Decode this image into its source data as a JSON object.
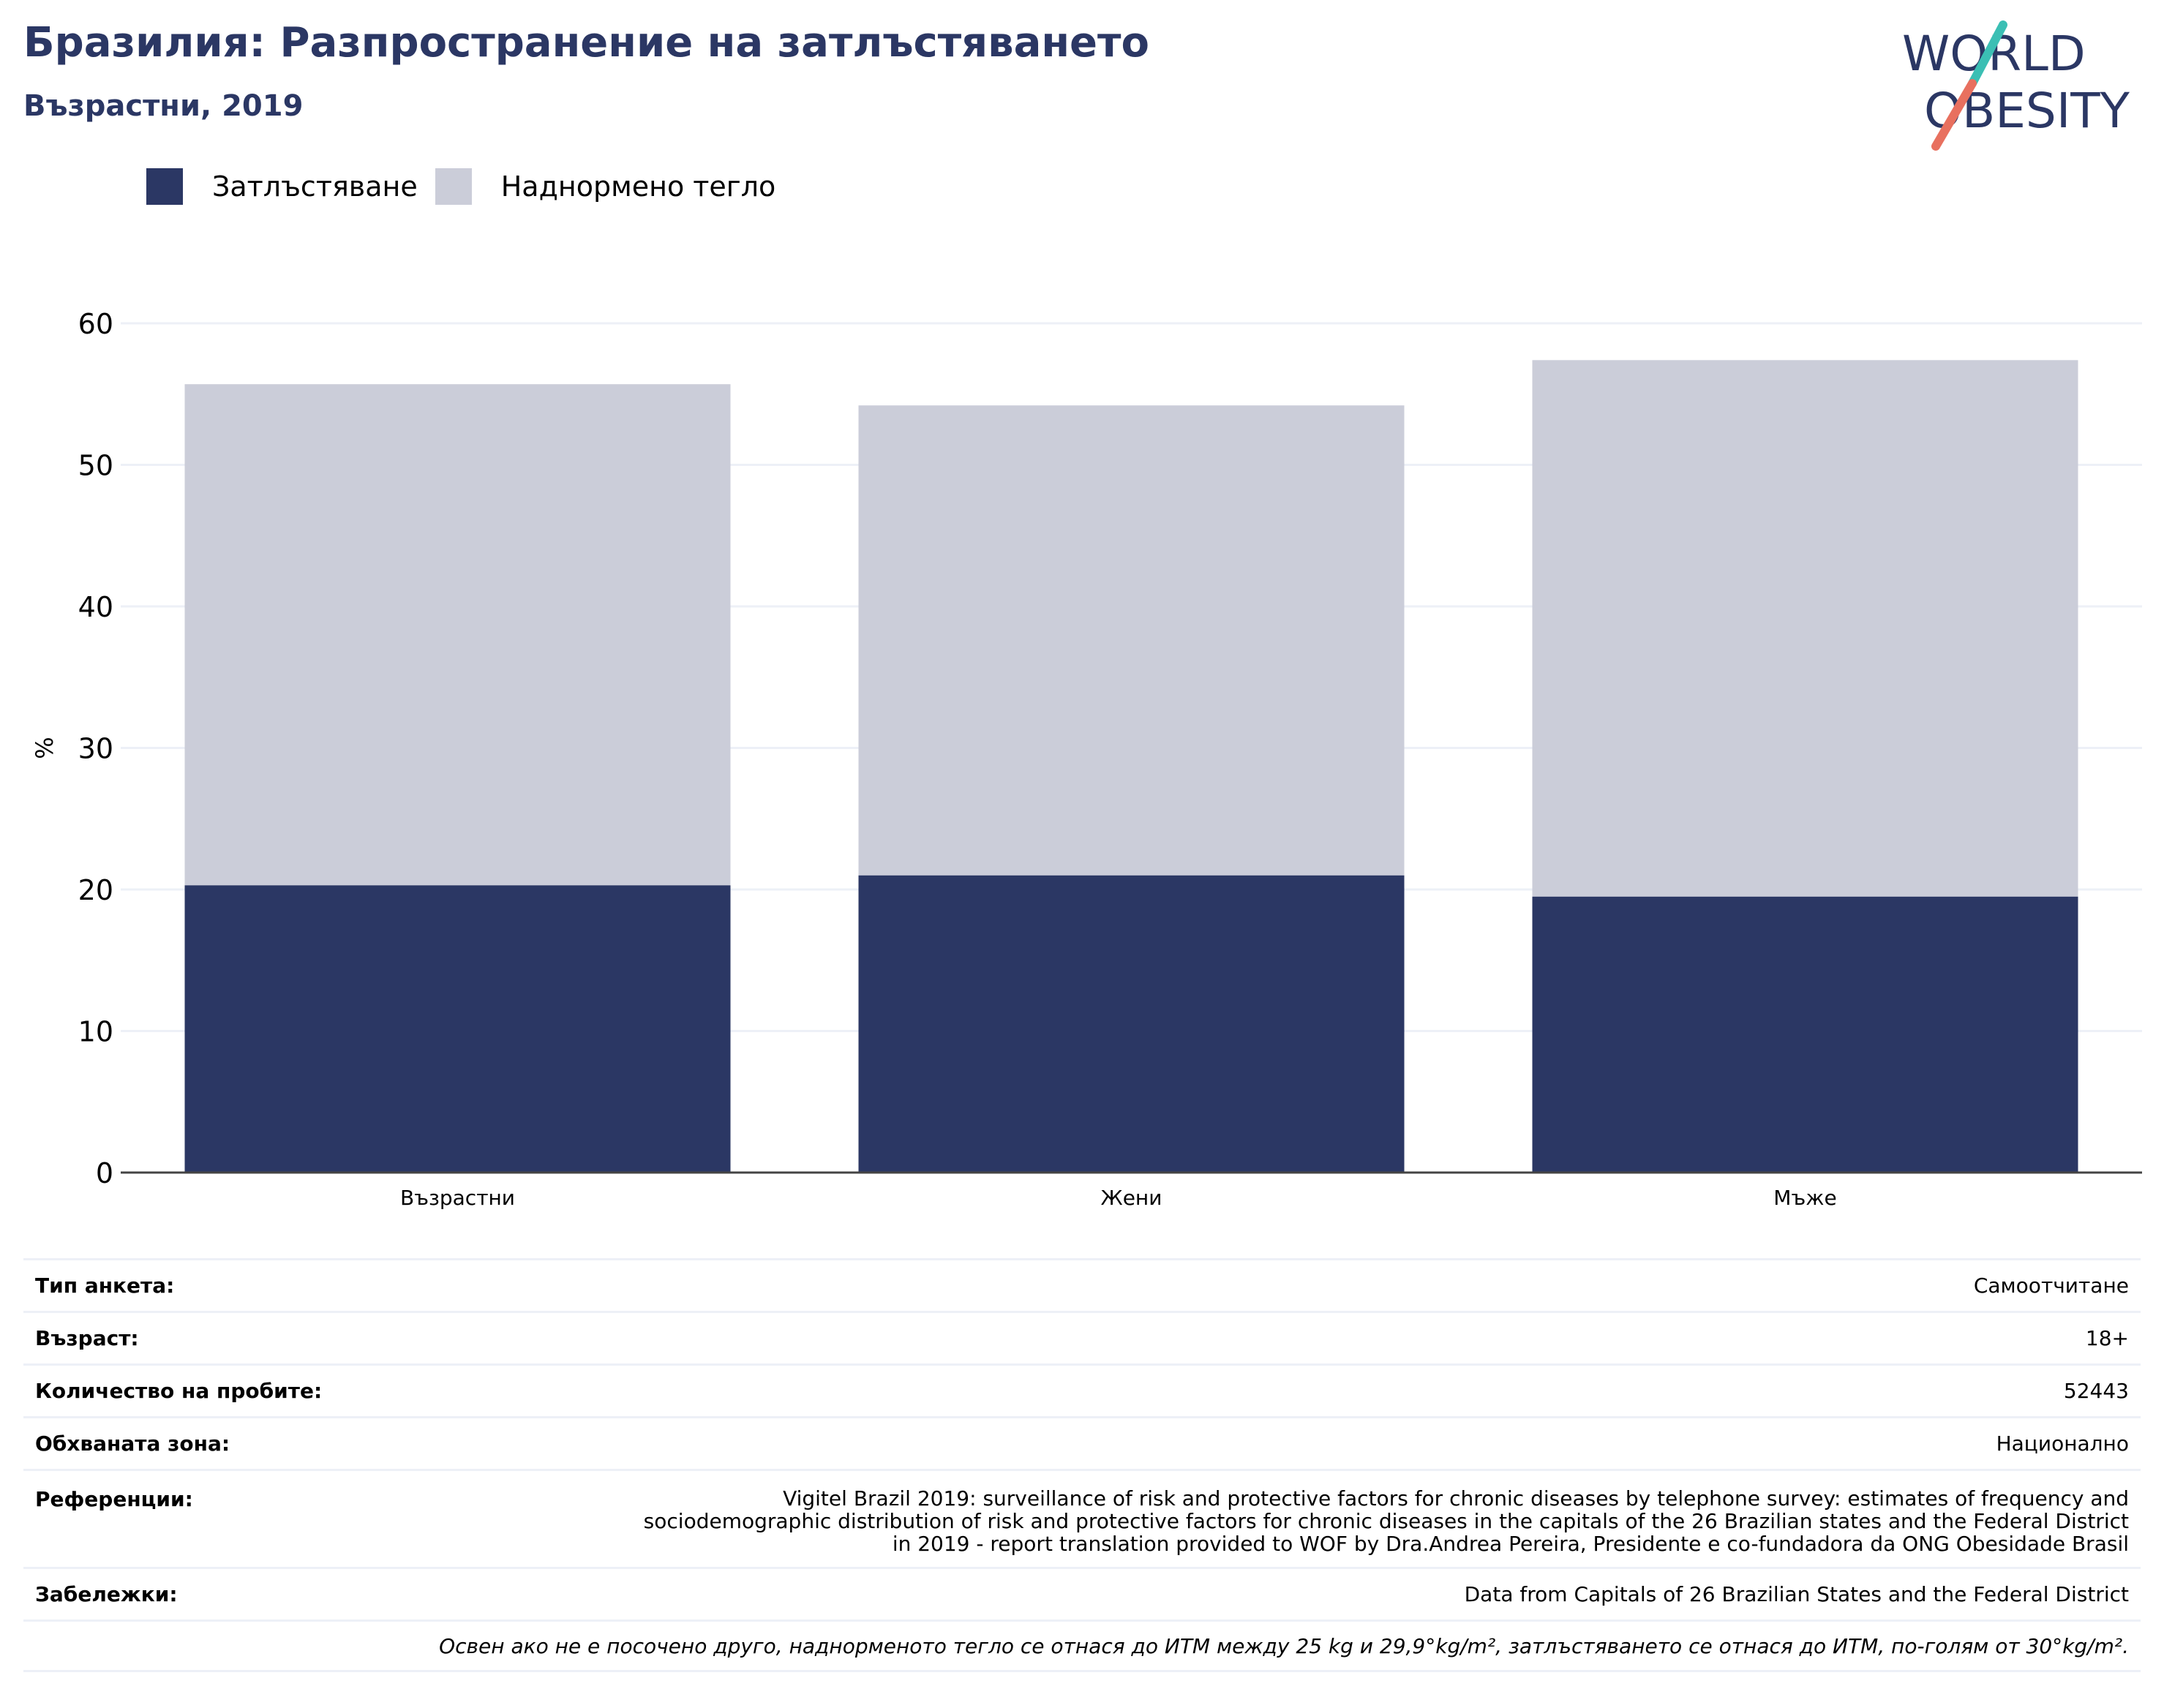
{
  "header": {
    "title": "Бразилия: Разпространение на затлъстяването",
    "subtitle": "Възрастни, 2019",
    "logo_line1": "WORLD",
    "logo_line2": "OBESITY"
  },
  "colors": {
    "obesity": "#2b3764",
    "overweight": "#cbcdd9",
    "grid": "#edf0f7",
    "logo_text": "#2b3764",
    "logo_slash_top": "#3bbfb4",
    "logo_slash_bottom": "#e8705f"
  },
  "chart_data": {
    "type": "bar",
    "stacked": true,
    "title": "",
    "xlabel": "",
    "ylabel": "%",
    "ylim": [
      0,
      60
    ],
    "yticks": [
      0,
      10,
      20,
      30,
      40,
      50,
      60
    ],
    "grid": true,
    "legend_position": "top-left",
    "categories": [
      "Възрастни",
      "Жени",
      "Мъже"
    ],
    "series": [
      {
        "name": "Затлъстяване",
        "values": [
          20.3,
          21.0,
          19.5
        ]
      },
      {
        "name": "Наднормено тегло",
        "values": [
          35.4,
          33.2,
          37.9
        ]
      }
    ]
  },
  "info_table": {
    "rows": [
      {
        "label": "Тип анкета:",
        "value": "Самоотчитане"
      },
      {
        "label": "Възраст:",
        "value": "18+"
      },
      {
        "label": "Количество на пробите:",
        "value": "52443"
      },
      {
        "label": "Обхваната зона:",
        "value": "Национално"
      },
      {
        "label": "Референции:",
        "value": "Vigitel Brazil 2019: surveillance of risk and protective factors for chronic diseases by telephone survey: estimates of frequency and sociodemographic distribution of risk and protective factors for chronic diseases in the capitals of the 26 Brazilian states and the Federal District in 2019 - report translation provided to WOF by Dra.Andrea Pereira, Presidente e co-fundadora da ONG Obesidade Brasil"
      },
      {
        "label": "Забележки:",
        "value": "Data from Capitals of 26 Brazilian States and the Federal District"
      }
    ],
    "footnote": "Освен ако не е посочено друго, наднорменото тегло се отнася до ИТМ между 25 kg и 29,9°kg/m², затлъстяването се отнася до ИТМ, по-голям от 30°kg/m²."
  }
}
